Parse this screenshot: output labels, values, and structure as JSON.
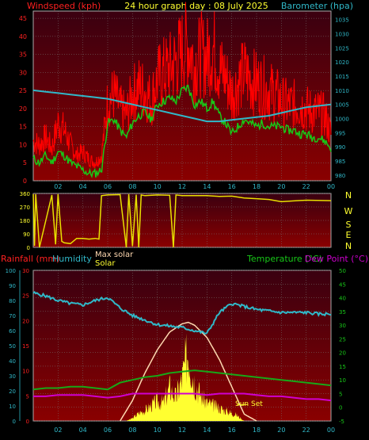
{
  "header": {
    "left_title": "Windspeed (kph)",
    "center_title": "24 hour graph day : 08 July 2025",
    "right_title": "Barometer (hpa)"
  },
  "colors": {
    "background": "#000000",
    "plot_top": "#3a0010",
    "plot_bottom": "#8a0000",
    "grid": "#7a7a7a",
    "wind": "#ff0000",
    "gust_line": "#18c818",
    "barometer": "#30b8c8",
    "wind_dir": "#e8e000",
    "humidity": "#30b8c8",
    "temperature": "#18a818",
    "dew_point": "#d000d0",
    "solar": "#ffff30",
    "max_solar": "#ffd8b0",
    "rain_axis": "#ff2020"
  },
  "compass": [
    "N",
    "W",
    "S",
    "E",
    "N"
  ],
  "sunset_label": "Sun Set",
  "bottom_legend": {
    "rainfall": "Rainfall (mm)",
    "humidity": "Humidity",
    "max_solar": "Max solar",
    "solar": "Solar",
    "temperature": "Temperature (°C)",
    "dew_point": "Dew Point (°C)"
  },
  "chart_data": [
    {
      "type": "line",
      "title": "24 hour graph day : 08 July 2025",
      "x_ticks": [
        "02",
        "04",
        "06",
        "08",
        "10",
        "12",
        "14",
        "16",
        "18",
        "20",
        "22",
        "00"
      ],
      "x_range_hours": [
        0,
        24
      ],
      "y_left_label": "Windspeed (kph)",
      "y_left_ticks": [
        0,
        5,
        10,
        15,
        20,
        25,
        30,
        35,
        40,
        45
      ],
      "y_left_range": [
        0,
        47
      ],
      "y_right_label": "Barometer (hpa)",
      "y_right_ticks": [
        980,
        985,
        990,
        995,
        1000,
        1005,
        1010,
        1015,
        1020,
        1025,
        1030,
        1035
      ],
      "y_right_range": [
        978,
        1038
      ],
      "series": [
        {
          "name": "Windspeed (kph)",
          "axis": "left",
          "x": [
            0,
            0.5,
            1,
            1.5,
            2,
            2.5,
            3,
            3.5,
            4,
            4.5,
            5,
            5.5,
            6,
            6.5,
            7,
            7.5,
            8,
            8.5,
            9,
            9.5,
            10,
            10.5,
            11,
            11.5,
            12,
            12.5,
            13,
            13.5,
            14,
            14.5,
            15,
            15.5,
            16,
            16.5,
            17,
            17.5,
            18,
            18.5,
            19,
            19.5,
            20,
            20.5,
            21,
            21.5,
            22,
            22.5,
            23,
            23.5,
            24
          ],
          "values": [
            11,
            10,
            12,
            9,
            16,
            14,
            10,
            7,
            8,
            6,
            5,
            7,
            22,
            24,
            20,
            18,
            24,
            26,
            25,
            22,
            28,
            30,
            31,
            33,
            36,
            38,
            32,
            35,
            34,
            37,
            31,
            29,
            24,
            27,
            30,
            28,
            27,
            26,
            25,
            24,
            22,
            21,
            21,
            21,
            20,
            19,
            19,
            18,
            13
          ]
        },
        {
          "name": "",
          "axis": "left",
          "x": [
            0,
            0.5,
            1,
            1.5,
            2,
            2.5,
            3,
            3.5,
            4,
            4.5,
            5,
            5.5,
            6,
            6.5,
            7,
            7.5,
            8,
            8.5,
            9,
            9.5,
            10,
            10.5,
            11,
            11.5,
            12,
            12.5,
            13,
            13.5,
            14,
            14.5,
            15,
            15.5,
            16,
            16.5,
            17,
            17.5,
            18,
            18.5,
            19,
            19.5,
            20,
            20.5,
            21,
            21.5,
            22,
            22.5,
            23,
            23.5,
            24
          ],
          "values": [
            6,
            5,
            7,
            5,
            8,
            7,
            5,
            4,
            3,
            2,
            2,
            3,
            16,
            17,
            14,
            12,
            16,
            18,
            19,
            17,
            21,
            22,
            23,
            22,
            25,
            26,
            21,
            22,
            20,
            22,
            18,
            16,
            13,
            15,
            17,
            16,
            15,
            16,
            15,
            15,
            15,
            14,
            14,
            13,
            13,
            12,
            12,
            11,
            9
          ]
        },
        {
          "name": "Barometer (hpa)",
          "axis": "right",
          "x": [
            0,
            1,
            2,
            3,
            4,
            5,
            6,
            7,
            8,
            9,
            10,
            11,
            12,
            13,
            14,
            15,
            16,
            17,
            18,
            19,
            20,
            21,
            22,
            23,
            24
          ],
          "values": [
            1010,
            1009.5,
            1009,
            1008.5,
            1008,
            1007.5,
            1007,
            1006,
            1005,
            1004,
            1003,
            1002,
            1001,
            1000,
            999,
            999,
            999.5,
            1000,
            1000.5,
            1001,
            1002,
            1003,
            1004,
            1004.5,
            1005
          ]
        }
      ]
    },
    {
      "type": "line",
      "title": "",
      "x_range_hours": [
        0,
        24
      ],
      "y_left_ticks": [
        0,
        90,
        180,
        270,
        360
      ],
      "y_left_range": [
        0,
        360
      ],
      "y_right_ticks": [
        "N",
        "W",
        "S",
        "E",
        "N"
      ],
      "series": [
        {
          "name": "",
          "x": [
            0,
            0.1,
            0.2,
            0.5,
            1.5,
            1.8,
            2.0,
            2.3,
            2.5,
            3.0,
            3.5,
            4.0,
            4.5,
            5.0,
            5.3,
            5.5,
            6.0,
            7.0,
            7.5,
            7.7,
            8.0,
            8.3,
            8.5,
            8.7,
            9.0,
            10.0,
            11.0,
            11.3,
            11.5,
            12,
            14,
            15,
            16,
            17,
            18,
            19,
            20,
            21,
            22,
            24
          ],
          "values": [
            355,
            10,
            355,
            0,
            350,
            20,
            355,
            40,
            30,
            25,
            60,
            60,
            55,
            60,
            55,
            345,
            350,
            352,
            0,
            355,
            8,
            352,
            0,
            350,
            345,
            350,
            348,
            0,
            350,
            345,
            345,
            340,
            342,
            330,
            325,
            320,
            305,
            310,
            315,
            312
          ]
        }
      ]
    },
    {
      "type": "line",
      "title": "",
      "x_range_hours": [
        0,
        24
      ],
      "y_far_left_label": "Rainfall (mm)",
      "y_far_left_ticks": [
        0,
        10,
        20,
        30,
        40,
        50,
        60,
        70,
        80,
        90,
        100
      ],
      "y_left_ticks": [
        0,
        5,
        10,
        15,
        20,
        25,
        30
      ],
      "y_left_range": [
        0,
        30
      ],
      "y_right_label": "Temperature (°C)",
      "y_right_ticks": [
        -5,
        0,
        5,
        10,
        15,
        20,
        25,
        30,
        35,
        40,
        45,
        50
      ],
      "y_right_range": [
        -5,
        50
      ],
      "series": [
        {
          "name": "Humidity",
          "axis": "humidity",
          "x": [
            0,
            1,
            2,
            3,
            4,
            5,
            6,
            7,
            8,
            9,
            10,
            11,
            12,
            13,
            14,
            14.5,
            15,
            16,
            17,
            18,
            19,
            20,
            21,
            22,
            23,
            24
          ],
          "values": [
            85,
            83,
            80,
            78,
            77,
            80,
            82,
            75,
            70,
            67,
            64,
            63,
            62,
            60,
            58,
            65,
            72,
            78,
            76,
            74,
            73,
            72,
            72,
            72,
            71,
            71
          ]
        },
        {
          "name": "Temperature (°C)",
          "axis": "right",
          "x": [
            0,
            1,
            2,
            3,
            4,
            5,
            6,
            7,
            8,
            9,
            10,
            11,
            12,
            13,
            14,
            15,
            16,
            17,
            18,
            19,
            20,
            21,
            22,
            23,
            24
          ],
          "values": [
            6.5,
            7,
            7,
            7.5,
            7.5,
            7,
            6.5,
            9,
            10,
            11,
            11.5,
            12.5,
            13,
            13.5,
            13,
            12.5,
            12,
            11.5,
            11,
            10.5,
            10,
            9.5,
            9,
            8.5,
            8
          ]
        },
        {
          "name": "Dew Point (°C)",
          "axis": "right",
          "x": [
            0,
            1,
            2,
            3,
            4,
            5,
            6,
            7,
            8,
            9,
            10,
            11,
            12,
            13,
            14,
            15,
            16,
            17,
            18,
            19,
            20,
            21,
            22,
            23,
            24
          ],
          "values": [
            4,
            4,
            4.5,
            4.5,
            4.5,
            4,
            3.5,
            4,
            5,
            5,
            5,
            5,
            5,
            5,
            4.5,
            5,
            5,
            5,
            4.5,
            4,
            4,
            3.5,
            3,
            3,
            2.5
          ]
        },
        {
          "name": "Max solar",
          "axis": "solar",
          "x": [
            7,
            8,
            9,
            10,
            11,
            12,
            12.5,
            13,
            14,
            15,
            16,
            17,
            18
          ],
          "values": [
            0,
            150,
            350,
            520,
            650,
            710,
            720,
            700,
            610,
            450,
            250,
            50,
            0
          ]
        },
        {
          "name": "Solar",
          "axis": "solar",
          "x": [
            7.5,
            8,
            8.5,
            9,
            9.5,
            10,
            10.5,
            11,
            11.5,
            12,
            12.2,
            12.5,
            12.8,
            13,
            13.3,
            13.6,
            14,
            14.5,
            15,
            15.5,
            16,
            16.3,
            16.6,
            17
          ],
          "values": [
            0,
            20,
            60,
            80,
            120,
            150,
            140,
            260,
            180,
            330,
            420,
            560,
            380,
            300,
            240,
            180,
            140,
            120,
            100,
            80,
            60,
            50,
            30,
            0
          ]
        }
      ]
    }
  ]
}
